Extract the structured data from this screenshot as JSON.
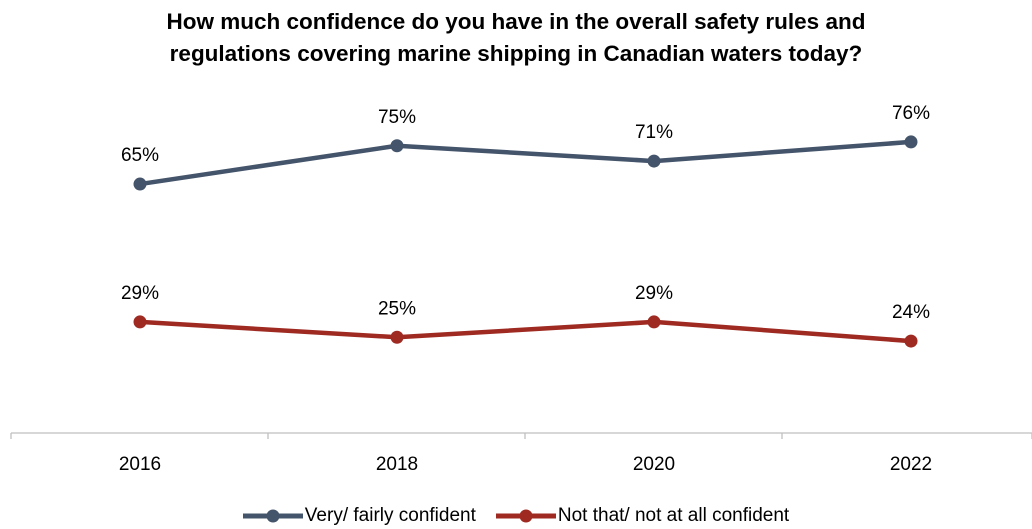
{
  "chart_data": {
    "type": "line",
    "title": "How much confidence do you have in the overall safety rules and regulations covering marine shipping in Canadian waters today?",
    "title_lines": [
      "How much confidence do you have in the overall safety rules and",
      "regulations covering marine shipping in Canadian waters today?"
    ],
    "categories": [
      "2016",
      "2018",
      "2020",
      "2022"
    ],
    "series": [
      {
        "name": "Very/ fairly confident",
        "values": [
          65,
          75,
          71,
          76
        ],
        "labels": [
          "65%",
          "75%",
          "71%",
          "76%"
        ],
        "color": "#44546a"
      },
      {
        "name": "Not that/ not at all confident",
        "values": [
          29,
          25,
          29,
          24
        ],
        "labels": [
          "29%",
          "25%",
          "29%",
          "24%"
        ],
        "color": "#9e2a22"
      }
    ],
    "xlabel": "",
    "ylabel": "",
    "ylim": [
      0,
      82
    ],
    "grid": false,
    "legend_position": "bottom"
  }
}
